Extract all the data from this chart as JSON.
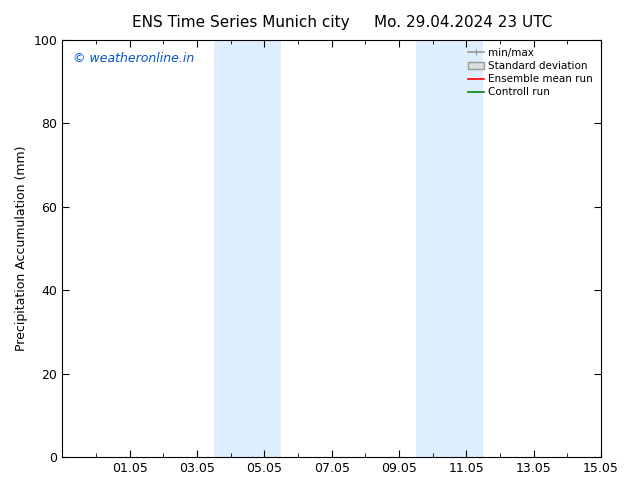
{
  "title_left": "ENS Time Series Munich city",
  "title_right": "Mo. 29.04.2024 23 UTC",
  "ylabel": "Precipitation Accumulation (mm)",
  "watermark": "© weatheronline.in",
  "watermark_color": "#0055cc",
  "ylim": [
    0,
    100
  ],
  "yticks": [
    0,
    20,
    40,
    60,
    80,
    100
  ],
  "xtick_labels": [
    "01.05",
    "03.05",
    "05.05",
    "07.05",
    "09.05",
    "11.05",
    "13.05",
    "15.05"
  ],
  "xtick_positions": [
    2,
    4,
    6,
    8,
    10,
    12,
    14,
    16
  ],
  "x_min": 0,
  "x_max": 16,
  "shaded_bands": [
    {
      "x_start": 4.5,
      "x_end": 5.5,
      "color": "#ddeeff"
    },
    {
      "x_start": 5.5,
      "x_end": 6.5,
      "color": "#ddeeff"
    },
    {
      "x_start": 10.5,
      "x_end": 11.5,
      "color": "#ddeeff"
    },
    {
      "x_start": 11.5,
      "x_end": 12.5,
      "color": "#ddeeff"
    }
  ],
  "legend_labels": [
    "min/max",
    "Standard deviation",
    "Ensemble mean run",
    "Controll run"
  ],
  "legend_line_colors": [
    "#999999",
    "#bbbbbb",
    "#ff0000",
    "#008000"
  ],
  "legend_patch_facecolor": "#dddddd",
  "legend_patch_edgecolor": "#999999",
  "background_color": "#ffffff",
  "font_size": 9,
  "title_font_size": 11
}
